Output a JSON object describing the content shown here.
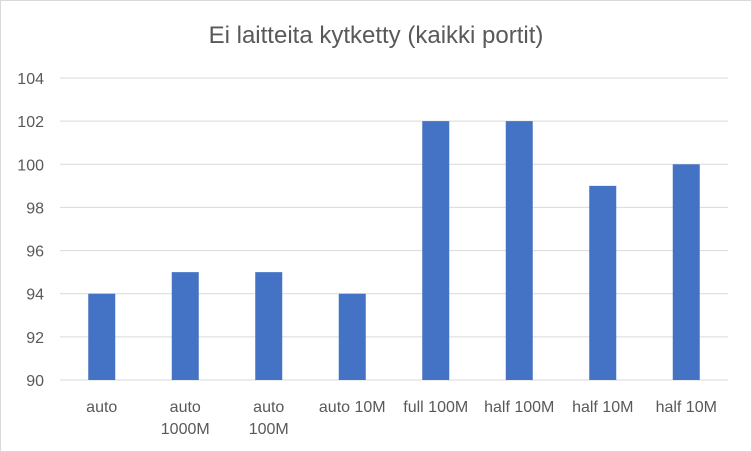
{
  "chart_data": {
    "type": "bar",
    "title": "Ei laitteita kytketty (kaikki portit)",
    "categories": [
      [
        "auto"
      ],
      [
        "auto",
        "1000M"
      ],
      [
        "auto",
        "100M"
      ],
      [
        "auto 10M"
      ],
      [
        "full 100M"
      ],
      [
        "half 100M"
      ],
      [
        "half 10M"
      ],
      [
        "half 10M"
      ]
    ],
    "values": [
      94,
      95,
      95,
      94,
      102,
      102,
      99,
      100
    ],
    "ylim": [
      90,
      104
    ],
    "yticks": [
      90,
      92,
      94,
      96,
      98,
      100,
      102,
      104
    ],
    "grid": true,
    "legend": "none",
    "colors": {
      "bar": "#4472c4",
      "grid": "#d9d9d9",
      "text": "#595959"
    }
  }
}
